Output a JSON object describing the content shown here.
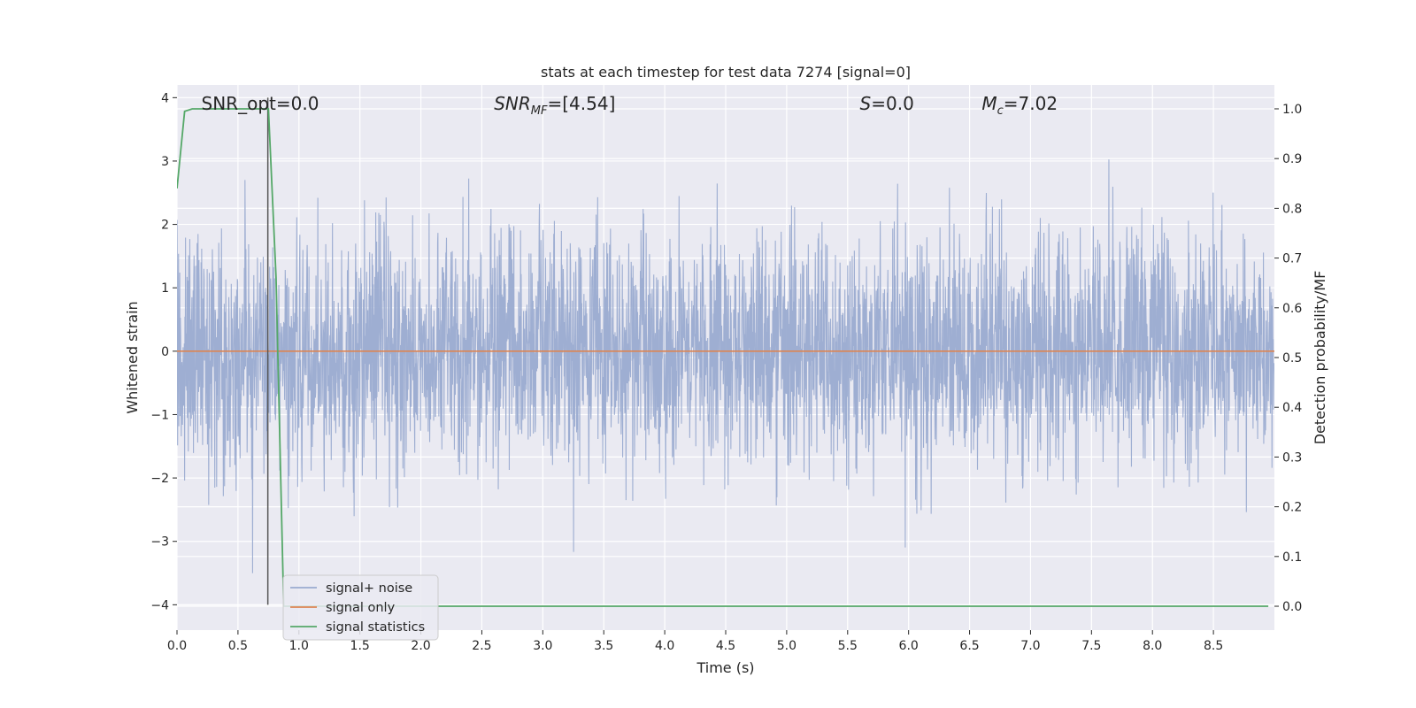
{
  "chart_data": {
    "type": "line",
    "title": "stats at each timestep for test data 7274 [signal=0]",
    "xlabel": "Time (s)",
    "ylabel": "Whitened strain",
    "ylabel_right": "Detection probability/MF",
    "xlim": [
      0,
      9.0
    ],
    "ylim": [
      -4.4,
      4.2
    ],
    "ylim_right": [
      -0.048,
      1.048
    ],
    "x_ticks": [
      0.0,
      0.5,
      1.0,
      1.5,
      2.0,
      2.5,
      3.0,
      3.5,
      4.0,
      4.5,
      5.0,
      5.5,
      6.0,
      6.5,
      7.0,
      7.5,
      8.0,
      8.5
    ],
    "x_tick_labels": [
      "0.0",
      "0.5",
      "1.0",
      "1.5",
      "2.0",
      "2.5",
      "3.0",
      "3.5",
      "4.0",
      "4.5",
      "5.0",
      "5.5",
      "6.0",
      "6.5",
      "7.0",
      "7.5",
      "8.0",
      "8.5"
    ],
    "y_ticks": [
      -4,
      -3,
      -2,
      -1,
      0,
      1,
      2,
      3,
      4
    ],
    "y_tick_labels": [
      "−4",
      "−3",
      "−2",
      "−1",
      "0",
      "1",
      "2",
      "3",
      "4"
    ],
    "y_ticks_right": [
      0.0,
      0.1,
      0.2,
      0.3,
      0.4,
      0.5,
      0.6,
      0.7,
      0.8,
      0.9,
      1.0
    ],
    "y_tick_labels_right": [
      "0.0",
      "0.1",
      "0.2",
      "0.3",
      "0.4",
      "0.5",
      "0.6",
      "0.7",
      "0.8",
      "0.9",
      "1.0"
    ],
    "grid": true,
    "legend_placement": "lower-left",
    "noise": {
      "sample_rate": 400,
      "duration": 9.0,
      "upper_typical": 1.7,
      "lower_typical": -1.7,
      "max_abs": 3.8,
      "seed": 7274
    },
    "series": [
      {
        "name": "signal+ noise",
        "color": "#9aabd0",
        "axis": "left",
        "kind": "noise"
      },
      {
        "name": "signal only",
        "color": "#dd8452",
        "axis": "left",
        "x": [
          0.0,
          9.0
        ],
        "y": [
          0.0,
          0.0
        ]
      },
      {
        "name": "signal statistics",
        "color": "#55a868",
        "axis": "right",
        "x": [
          0.0,
          0.0625,
          0.125,
          0.1875,
          0.25,
          0.3125,
          0.375,
          0.4375,
          0.5,
          0.5625,
          0.625,
          0.6875,
          0.75,
          0.8125,
          0.875,
          0.9375,
          1.0,
          2.0,
          3.0,
          4.0,
          5.0,
          6.0,
          7.0,
          7.5,
          8.0,
          8.5,
          8.95
        ],
        "y": [
          0.84,
          0.995,
          1.0,
          1.0,
          1.0,
          1.0,
          1.0,
          1.0,
          1.0,
          1.0,
          1.0,
          1.0,
          1.0,
          0.66,
          0.0,
          0.0,
          0.0,
          0.0,
          0.0,
          0.0,
          0.0,
          0.0,
          0.0,
          0.0,
          0.0,
          0.0,
          0.0
        ]
      }
    ],
    "vline": {
      "x": 0.745,
      "y_from": -4.0,
      "y_to": 4.0,
      "color": "#555555"
    },
    "annotations": [
      {
        "text": "SNR_opt=0.0",
        "x": 0.2
      },
      {
        "text": "SNR",
        "sub": "MF",
        "rest": "=[4.54]",
        "italic": true,
        "x": 2.6
      },
      {
        "text": "S",
        "rest": "=0.0",
        "italic": true,
        "x": 5.6
      },
      {
        "text": "M",
        "sub": "c",
        "rest": "=7.02",
        "italic": true,
        "x": 6.6
      }
    ]
  }
}
